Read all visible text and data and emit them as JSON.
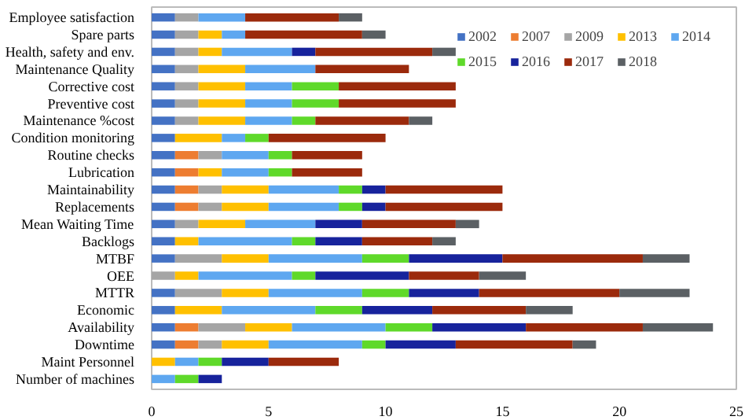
{
  "chart_data": {
    "type": "bar",
    "orientation": "horizontal",
    "stacked": true,
    "categories": [
      "Employee satisfaction",
      "Spare parts",
      "Health, safety and env.",
      "Maintenance Quality",
      "Corrective cost",
      "Preventive cost",
      "Maintenance %cost",
      "Condition monitoring",
      "Routine checks",
      "Lubrication",
      "Maintainability",
      "Replacements",
      "Mean Waiting Time",
      "Backlogs",
      "MTBF",
      "OEE",
      "MTTR",
      "Economic",
      "Availability",
      "Downtime",
      "Maint Personnel",
      "Number of machines"
    ],
    "series": [
      {
        "name": "2002",
        "color": "#4472c4",
        "values": [
          1,
          1,
          1,
          1,
          1,
          1,
          1,
          1,
          1,
          1,
          1,
          1,
          1,
          1,
          1,
          null,
          1,
          1,
          1,
          1,
          null,
          null
        ]
      },
      {
        "name": "2007",
        "color": "#ed7d31",
        "values": [
          null,
          null,
          null,
          null,
          null,
          null,
          null,
          null,
          1,
          1,
          1,
          1,
          null,
          null,
          null,
          null,
          null,
          null,
          1,
          1,
          null,
          null
        ]
      },
      {
        "name": "2009",
        "color": "#a5a5a5",
        "values": [
          1,
          1,
          1,
          1,
          1,
          1,
          1,
          null,
          1,
          null,
          1,
          1,
          1,
          null,
          2,
          1,
          2,
          null,
          2,
          1,
          null,
          null
        ]
      },
      {
        "name": "2013",
        "color": "#ffc000",
        "values": [
          null,
          1,
          1,
          2,
          2,
          2,
          2,
          2,
          null,
          1,
          2,
          2,
          2,
          1,
          2,
          1,
          2,
          2,
          2,
          2,
          1,
          null
        ]
      },
      {
        "name": "2014",
        "color": "#5ea7f0",
        "values": [
          2,
          1,
          3,
          3,
          2,
          2,
          2,
          1,
          2,
          2,
          3,
          3,
          3,
          4,
          4,
          4,
          4,
          4,
          4,
          4,
          1,
          1
        ]
      },
      {
        "name": "2015",
        "color": "#5fd92a",
        "values": [
          null,
          null,
          null,
          null,
          2,
          2,
          1,
          1,
          1,
          1,
          1,
          1,
          null,
          1,
          2,
          1,
          2,
          2,
          2,
          1,
          1,
          1
        ]
      },
      {
        "name": "2016",
        "color": "#17239c",
        "values": [
          null,
          null,
          1,
          null,
          null,
          null,
          null,
          null,
          null,
          null,
          1,
          1,
          2,
          2,
          4,
          4,
          3,
          3,
          4,
          3,
          2,
          1
        ]
      },
      {
        "name": "2017",
        "color": "#9b2a0c",
        "values": [
          4,
          5,
          5,
          4,
          5,
          5,
          4,
          5,
          3,
          3,
          5,
          5,
          4,
          3,
          6,
          3,
          6,
          4,
          5,
          5,
          3,
          null
        ]
      },
      {
        "name": "2018",
        "color": "#5b6064",
        "values": [
          1,
          1,
          1,
          null,
          null,
          null,
          1,
          null,
          null,
          null,
          null,
          null,
          1,
          1,
          2,
          2,
          3,
          2,
          3,
          1,
          null,
          null
        ]
      }
    ],
    "xlim": [
      0,
      25
    ],
    "xticks": [
      0,
      5,
      10,
      15,
      20,
      25
    ],
    "grid": false,
    "legend": "top right"
  }
}
